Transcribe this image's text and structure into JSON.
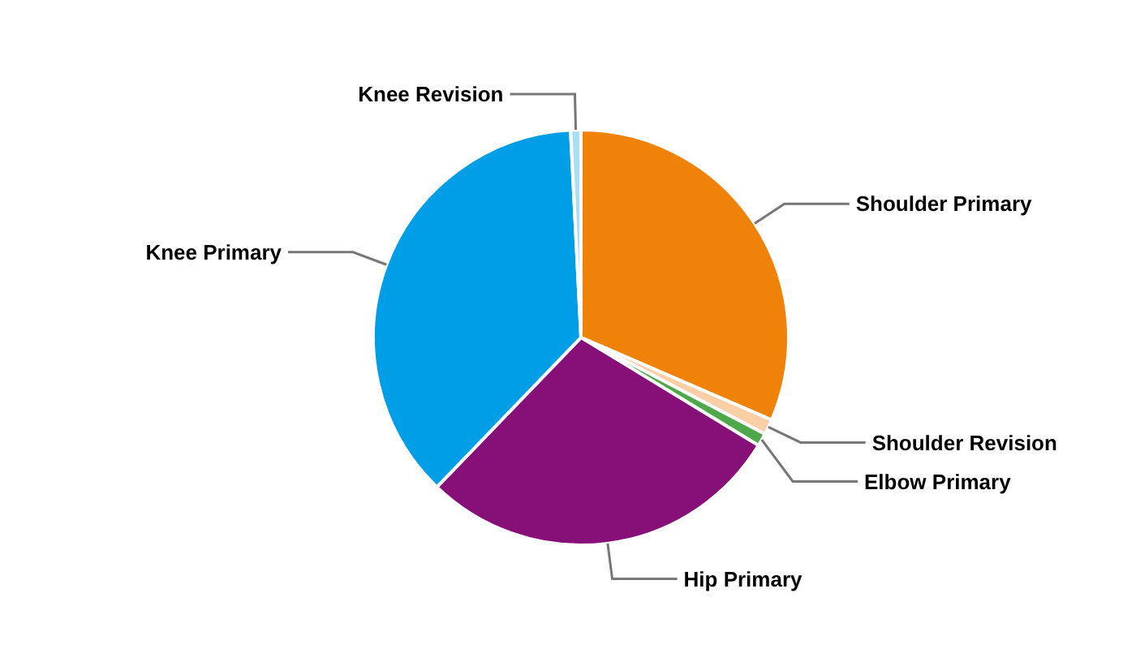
{
  "chart_data": {
    "type": "pie",
    "categories": [
      "Shoulder Primary",
      "Shoulder Revision",
      "Elbow Primary",
      "Hip Primary",
      "Knee Primary",
      "Knee Revision"
    ],
    "values": [
      31.5,
      1.2,
      1,
      28.5,
      37,
      0.8
    ],
    "colors": [
      "#f0820a",
      "#fbcfa6",
      "#4ea84a",
      "#870f78",
      "#009ee6",
      "#a9def5"
    ]
  }
}
